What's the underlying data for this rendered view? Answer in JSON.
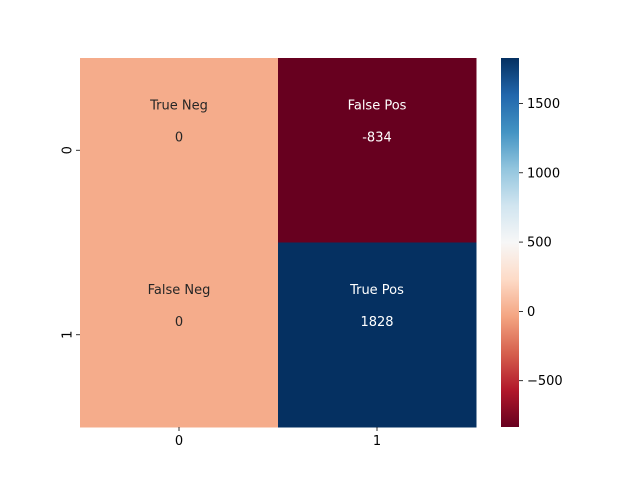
{
  "chart_data": {
    "type": "heatmap",
    "title": "",
    "xlabel": "",
    "ylabel": "",
    "x_categories": [
      "0",
      "1"
    ],
    "y_categories": [
      "0",
      "1"
    ],
    "cells": [
      {
        "row": 0,
        "col": 0,
        "label": "True Neg",
        "value": 0,
        "value_text": "0"
      },
      {
        "row": 0,
        "col": 1,
        "label": "False Pos",
        "value": -834,
        "value_text": "-834"
      },
      {
        "row": 1,
        "col": 0,
        "label": "False Neg",
        "value": 0,
        "value_text": "0"
      },
      {
        "row": 1,
        "col": 1,
        "label": "True Pos",
        "value": 1828,
        "value_text": "1828"
      }
    ],
    "colorbar": {
      "colormap": "RdBu",
      "vmin": -834,
      "vmax": 1828,
      "ticks": [
        -500,
        0,
        500,
        1000,
        1500
      ],
      "tick_labels": [
        "−500",
        "0",
        "500",
        "1000",
        "1500"
      ]
    },
    "colors": {
      "zero_cell": "#f4a582",
      "min_cell": "#67001f",
      "max_cell": "#053061",
      "annotation_light": "#ffffff",
      "annotation_dark": "#262626"
    }
  }
}
